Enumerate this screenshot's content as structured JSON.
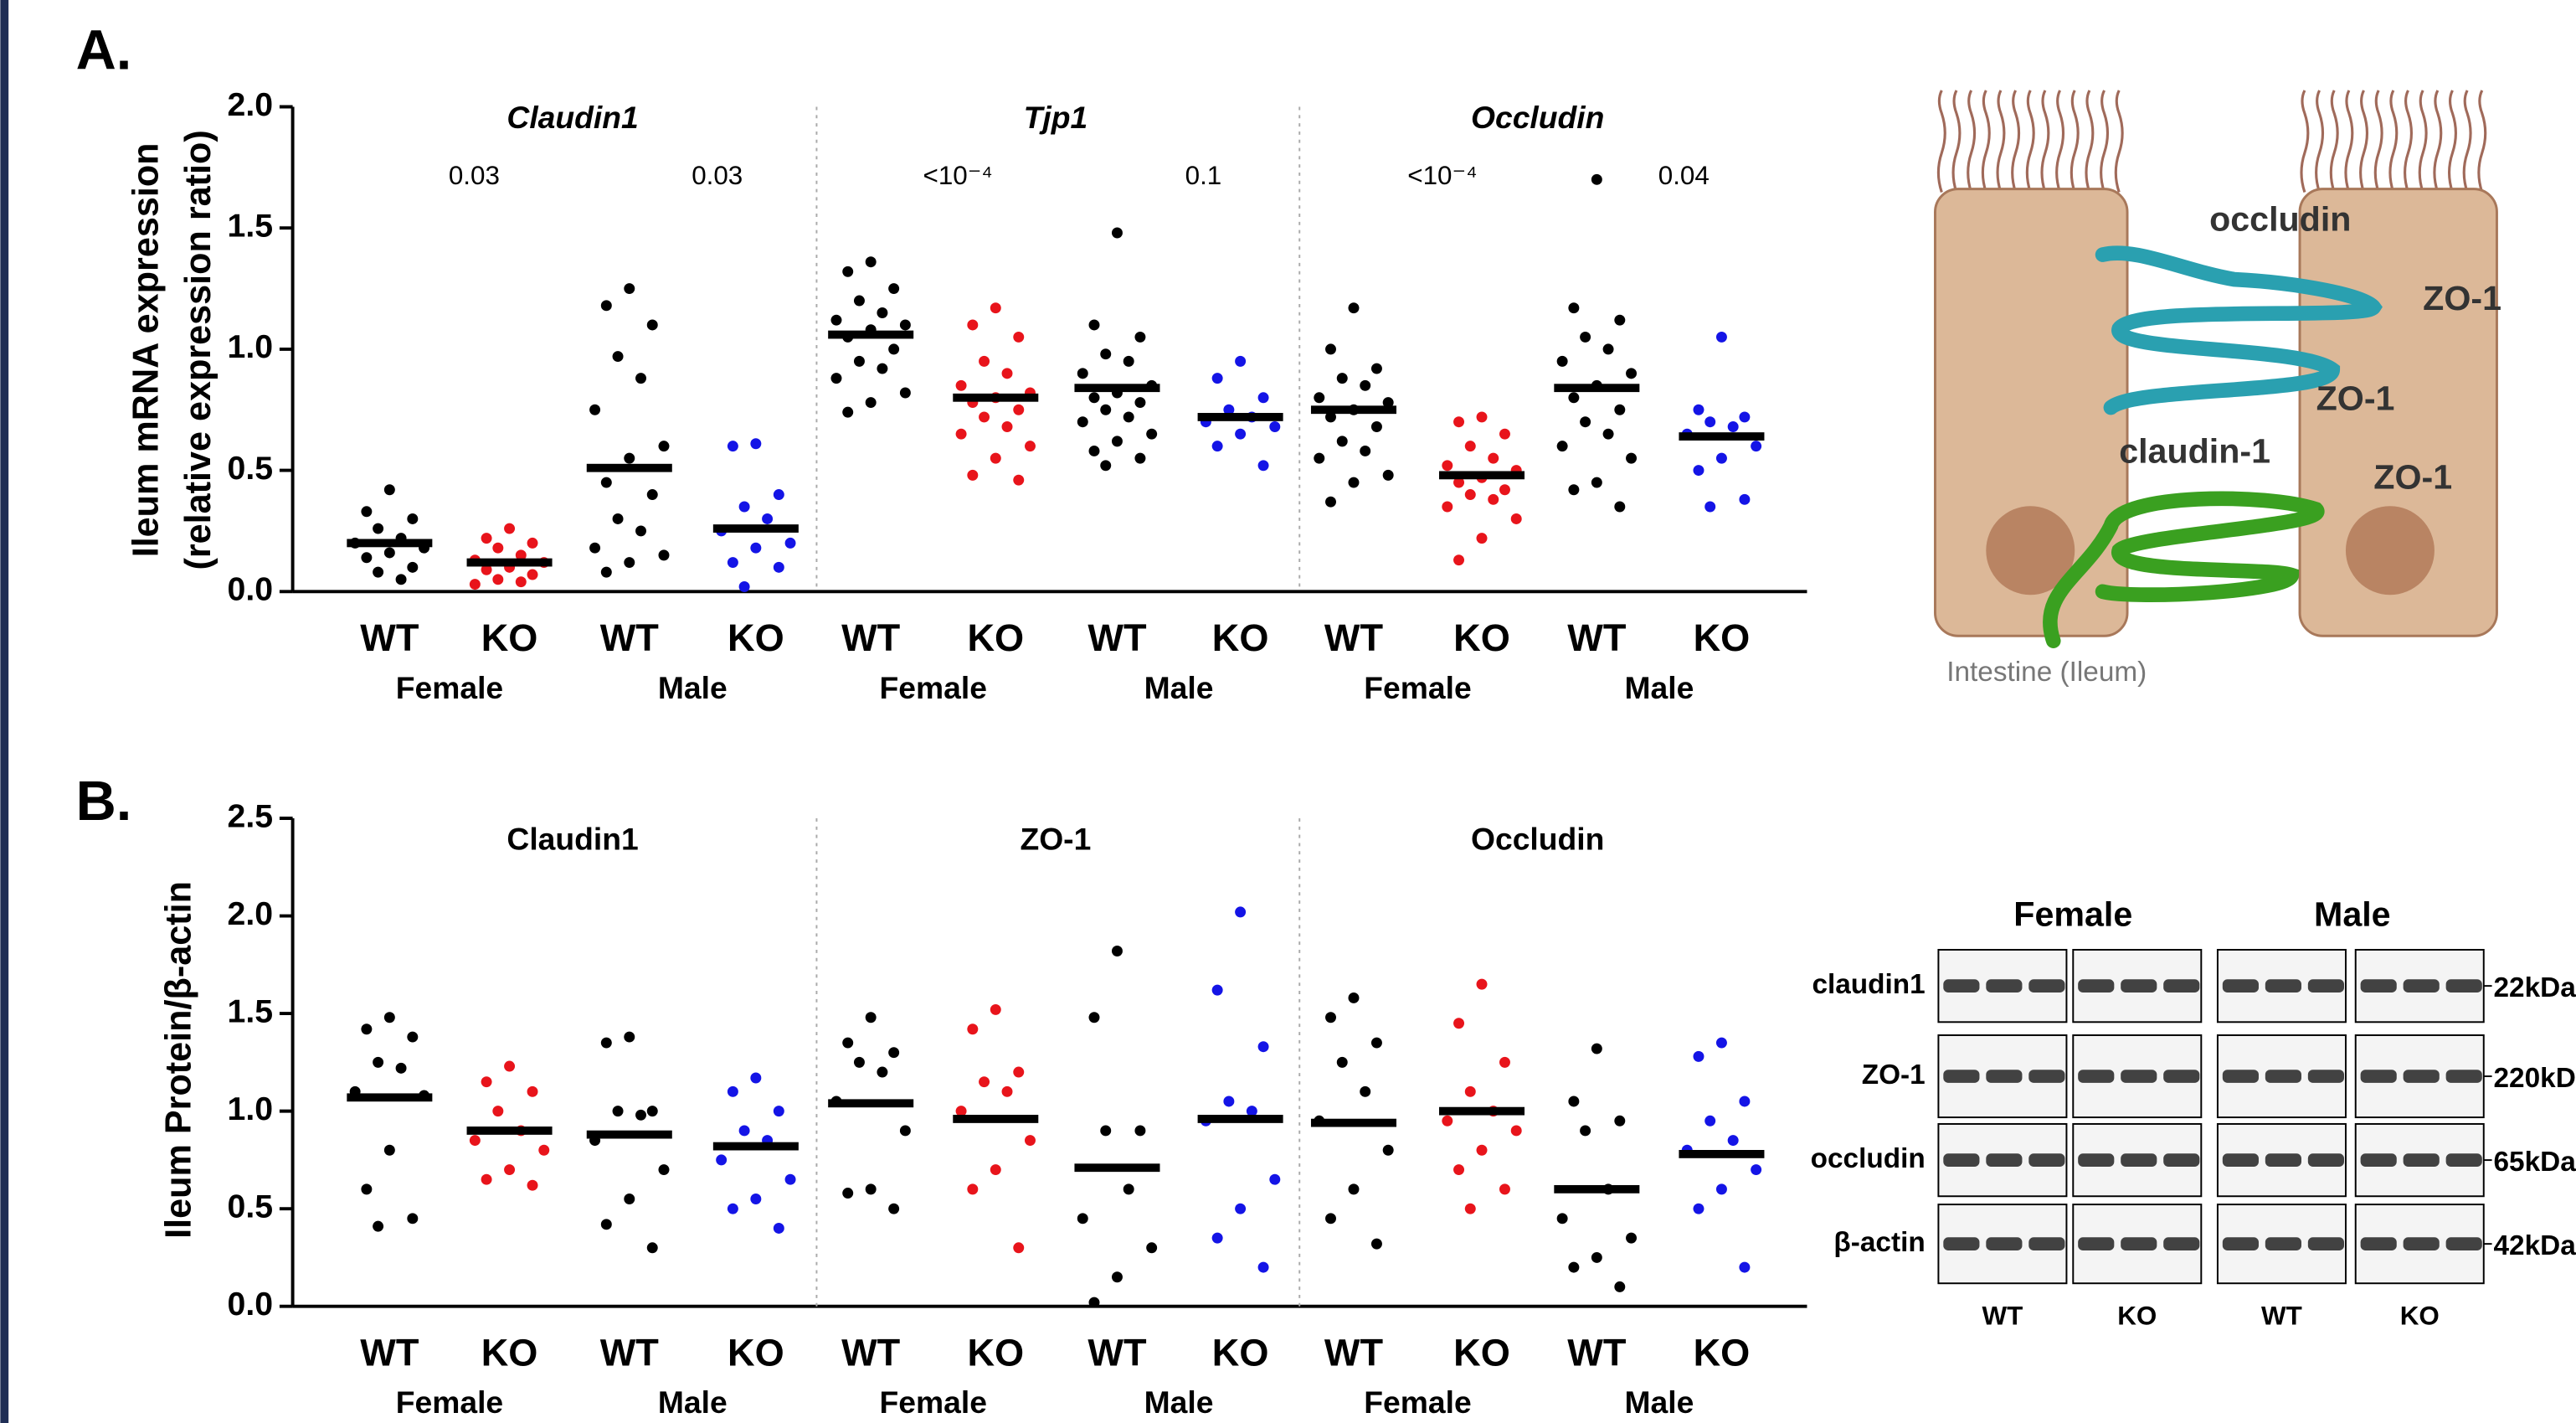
{
  "chart_data": [
    {
      "type": "strip",
      "panel_label": "A.",
      "italic_titles": true,
      "y_label": [
        "Ileum mRNA expression",
        "(relative expression ratio)"
      ],
      "ylim": [
        0,
        2
      ],
      "yticks": [
        {
          "value": 0,
          "label": "0.0"
        },
        0.5,
        {
          "value": 1,
          "label": "1.0"
        },
        1.5,
        {
          "value": 2,
          "label": "2.0"
        }
      ],
      "panels": [
        {
          "title": "Claudin1",
          "sexes": [
            "Female",
            "Male"
          ],
          "pvalues": [
            "0.03",
            "0.03"
          ],
          "groups": [
            {
              "name": "WT",
              "color": "#000000",
              "mean": 0.2,
              "values": [
                0.42,
                0.33,
                0.3,
                0.26,
                0.22,
                0.2,
                0.18,
                0.16,
                0.14,
                0.1,
                0.08,
                0.05
              ]
            },
            {
              "name": "KO",
              "color": "#e8141b",
              "mean": 0.12,
              "values": [
                0.26,
                0.22,
                0.2,
                0.18,
                0.15,
                0.13,
                0.12,
                0.1,
                0.09,
                0.07,
                0.05,
                0.04,
                0.03
              ]
            },
            {
              "name": "WT",
              "color": "#000000",
              "mean": 0.51,
              "values": [
                1.25,
                1.18,
                1.1,
                0.97,
                0.88,
                0.75,
                0.6,
                0.55,
                0.45,
                0.4,
                0.3,
                0.25,
                0.18,
                0.15,
                0.12,
                0.08
              ]
            },
            {
              "name": "KO",
              "color": "#1414e6",
              "mean": 0.26,
              "values": [
                0.61,
                0.6,
                0.4,
                0.35,
                0.3,
                0.25,
                0.2,
                0.18,
                0.12,
                0.1,
                0.02
              ]
            }
          ]
        },
        {
          "title": "Tjp1",
          "sexes": [
            "Female",
            "Male"
          ],
          "pvalues": [
            "<10⁻⁴",
            "0.1"
          ],
          "groups": [
            {
              "name": "WT",
              "color": "#000000",
              "mean": 1.06,
              "values": [
                1.36,
                1.32,
                1.25,
                1.2,
                1.15,
                1.12,
                1.1,
                1.08,
                1.05,
                1.0,
                0.95,
                0.92,
                0.88,
                0.82,
                0.78,
                0.74
              ]
            },
            {
              "name": "KO",
              "color": "#e8141b",
              "mean": 0.8,
              "values": [
                1.17,
                1.1,
                1.05,
                0.95,
                0.9,
                0.85,
                0.82,
                0.8,
                0.78,
                0.75,
                0.72,
                0.68,
                0.65,
                0.6,
                0.55,
                0.48,
                0.46
              ]
            },
            {
              "name": "WT",
              "color": "#000000",
              "mean": 0.84,
              "values": [
                1.48,
                1.1,
                1.05,
                0.98,
                0.95,
                0.9,
                0.85,
                0.82,
                0.8,
                0.78,
                0.75,
                0.72,
                0.7,
                0.65,
                0.62,
                0.58,
                0.55,
                0.52
              ]
            },
            {
              "name": "KO",
              "color": "#1414e6",
              "mean": 0.72,
              "values": [
                0.95,
                0.88,
                0.8,
                0.75,
                0.72,
                0.7,
                0.68,
                0.65,
                0.6,
                0.52
              ]
            }
          ]
        },
        {
          "title": "Occludin",
          "sexes": [
            "Female",
            "Male"
          ],
          "pvalues": [
            "<10⁻⁴",
            "0.04"
          ],
          "groups": [
            {
              "name": "WT",
              "color": "#000000",
              "mean": 0.75,
              "values": [
                1.17,
                1.0,
                0.92,
                0.88,
                0.85,
                0.8,
                0.78,
                0.75,
                0.72,
                0.68,
                0.62,
                0.58,
                0.55,
                0.48,
                0.45,
                0.37
              ]
            },
            {
              "name": "KO",
              "color": "#e8141b",
              "mean": 0.48,
              "values": [
                0.72,
                0.7,
                0.65,
                0.6,
                0.55,
                0.52,
                0.5,
                0.47,
                0.45,
                0.42,
                0.4,
                0.38,
                0.35,
                0.3,
                0.22,
                0.13
              ]
            },
            {
              "name": "WT",
              "color": "#000000",
              "mean": 0.84,
              "values": [
                1.7,
                1.17,
                1.12,
                1.05,
                1.0,
                0.95,
                0.9,
                0.85,
                0.8,
                0.75,
                0.7,
                0.65,
                0.6,
                0.55,
                0.45,
                0.42,
                0.35
              ]
            },
            {
              "name": "KO",
              "color": "#1414e6",
              "mean": 0.64,
              "values": [
                1.05,
                0.75,
                0.72,
                0.7,
                0.68,
                0.65,
                0.6,
                0.55,
                0.5,
                0.38,
                0.35
              ]
            }
          ]
        }
      ]
    },
    {
      "type": "strip",
      "panel_label": "B.",
      "italic_titles": false,
      "y_label": [
        "Ileum Protein/β-actin"
      ],
      "ylim": [
        0,
        2.5
      ],
      "yticks": [
        {
          "value": 0,
          "label": "0.0"
        },
        0.5,
        {
          "value": 1,
          "label": "1.0"
        },
        1.5,
        {
          "value": 2,
          "label": "2.0"
        },
        2.5
      ],
      "panels": [
        {
          "title": "Claudin1",
          "sexes": [
            "Female",
            "Male"
          ],
          "groups": [
            {
              "name": "WT",
              "color": "#000000",
              "mean": 1.07,
              "values": [
                1.48,
                1.42,
                1.38,
                1.25,
                1.22,
                1.1,
                1.08,
                0.8,
                0.6,
                0.45,
                0.41
              ]
            },
            {
              "name": "KO",
              "color": "#e8141b",
              "mean": 0.9,
              "values": [
                1.23,
                1.15,
                1.1,
                1.0,
                0.9,
                0.85,
                0.8,
                0.7,
                0.65,
                0.62
              ]
            },
            {
              "name": "WT",
              "color": "#000000",
              "mean": 0.88,
              "values": [
                1.38,
                1.35,
                1.0,
                1.0,
                0.98,
                0.85,
                0.7,
                0.55,
                0.42,
                0.3
              ]
            },
            {
              "name": "KO",
              "color": "#1414e6",
              "mean": 0.82,
              "values": [
                1.17,
                1.1,
                1.0,
                0.9,
                0.85,
                0.75,
                0.65,
                0.55,
                0.5,
                0.4
              ]
            }
          ]
        },
        {
          "title": "ZO-1",
          "sexes": [
            "Female",
            "Male"
          ],
          "groups": [
            {
              "name": "WT",
              "color": "#000000",
              "mean": 1.04,
              "values": [
                1.48,
                1.35,
                1.3,
                1.25,
                1.2,
                1.05,
                0.9,
                0.6,
                0.58,
                0.5
              ]
            },
            {
              "name": "KO",
              "color": "#e8141b",
              "mean": 0.96,
              "values": [
                1.52,
                1.42,
                1.2,
                1.15,
                1.1,
                1.0,
                0.85,
                0.7,
                0.6,
                0.3
              ]
            },
            {
              "name": "WT",
              "color": "#000000",
              "mean": 0.71,
              "values": [
                1.82,
                1.48,
                0.9,
                0.9,
                0.6,
                0.45,
                0.3,
                0.15,
                0.02
              ]
            },
            {
              "name": "KO",
              "color": "#1414e6",
              "mean": 0.96,
              "values": [
                2.02,
                1.62,
                1.33,
                1.05,
                1.0,
                0.95,
                0.65,
                0.5,
                0.35,
                0.2
              ]
            }
          ]
        },
        {
          "title": "Occludin",
          "sexes": [
            "Female",
            "Male"
          ],
          "groups": [
            {
              "name": "WT",
              "color": "#000000",
              "mean": 0.94,
              "values": [
                1.58,
                1.48,
                1.35,
                1.25,
                1.1,
                0.95,
                0.8,
                0.6,
                0.45,
                0.32
              ]
            },
            {
              "name": "KO",
              "color": "#e8141b",
              "mean": 1.0,
              "values": [
                1.65,
                1.45,
                1.25,
                1.1,
                1.0,
                0.95,
                0.9,
                0.8,
                0.7,
                0.6,
                0.5
              ]
            },
            {
              "name": "WT",
              "color": "#000000",
              "mean": 0.6,
              "values": [
                1.32,
                1.05,
                0.95,
                0.9,
                0.6,
                0.45,
                0.35,
                0.25,
                0.2,
                0.1
              ]
            },
            {
              "name": "KO",
              "color": "#1414e6",
              "mean": 0.78,
              "values": [
                1.35,
                1.28,
                1.05,
                0.95,
                0.85,
                0.8,
                0.7,
                0.6,
                0.5,
                0.2
              ]
            }
          ]
        }
      ]
    }
  ],
  "diagram": {
    "labels": [
      "occludin",
      "ZO-1",
      "ZO-1",
      "claudin-1",
      "ZO-1"
    ],
    "caption": "Intestine (Ileum)"
  },
  "blot": {
    "sexes": [
      "Female",
      "Male"
    ],
    "rows": [
      "claudin1",
      "ZO-1",
      "occludin",
      "β-actin"
    ],
    "sizes": [
      "22kDa",
      "220kD",
      "65kDa",
      "42kDa"
    ],
    "lanes": [
      "WT",
      "KO",
      "WT",
      "KO"
    ]
  }
}
